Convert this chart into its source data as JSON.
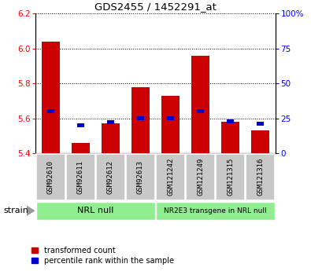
{
  "title": "GDS2455 / 1452291_at",
  "categories": [
    "GSM92610",
    "GSM92611",
    "GSM92612",
    "GSM92613",
    "GSM121242",
    "GSM121249",
    "GSM121315",
    "GSM121316"
  ],
  "transformed_counts": [
    6.04,
    5.46,
    5.57,
    5.78,
    5.73,
    5.96,
    5.58,
    5.53
  ],
  "percentile_ranks": [
    30,
    20,
    22,
    25,
    25,
    30,
    23,
    21
  ],
  "ylim_left": [
    5.4,
    6.2
  ],
  "ylim_right": [
    0,
    100
  ],
  "yticks_left": [
    5.4,
    5.6,
    5.8,
    6.0,
    6.2
  ],
  "yticks_right": [
    0,
    25,
    50,
    75,
    100
  ],
  "yticklabels_right": [
    "0",
    "25",
    "50",
    "75",
    "100%"
  ],
  "bar_color": "#cc0000",
  "percentile_color": "#0000cc",
  "group1_label": "NRL null",
  "group2_label": "NR2E3 transgene in NRL null",
  "group_bg_color": "#90ee90",
  "label_bg_color": "#c8c8c8",
  "legend_entries": [
    "transformed count",
    "percentile rank within the sample"
  ],
  "strain_label": "strain",
  "bar_width": 0.6,
  "baseline": 5.4
}
